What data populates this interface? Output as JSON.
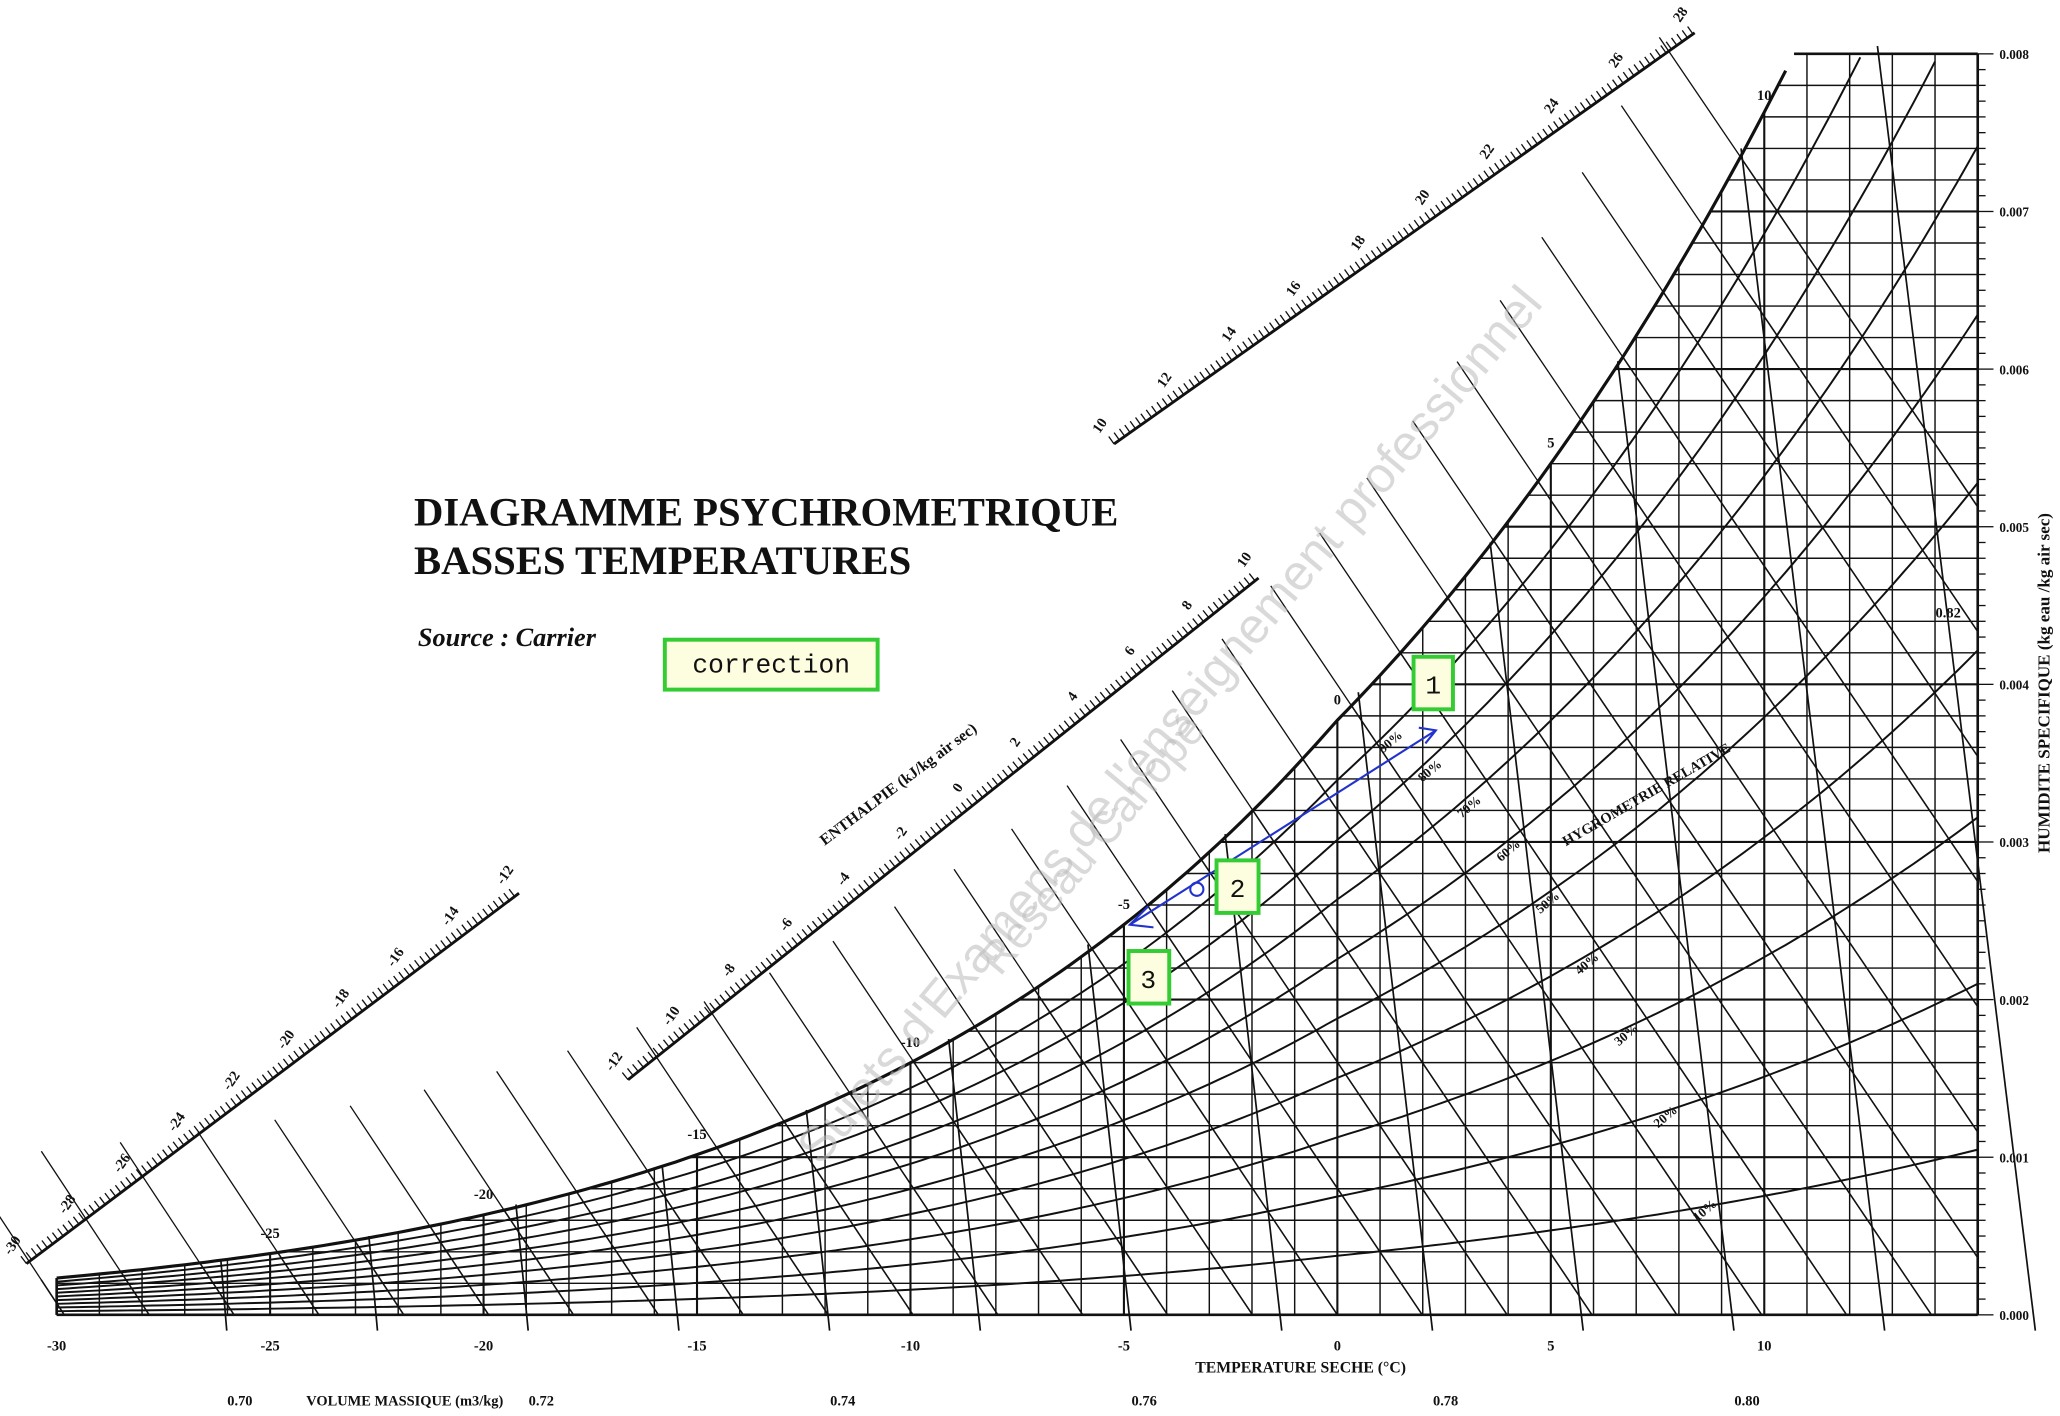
{
  "header": {
    "title_line1": "DIAGRAMME PSYCHROMETRIQUE",
    "title_line2": "BASSES TEMPERATURES",
    "source": "Source : Carrier"
  },
  "annotations": {
    "correction": "correction",
    "points": [
      "1",
      "2",
      "3"
    ]
  },
  "axes": {
    "temperature": {
      "title": "TEMPERATURE SECHE (°C)",
      "ticks": [
        "-30",
        "-25",
        "-20",
        "-15",
        "-10",
        "-5",
        "0",
        "5",
        "10"
      ]
    },
    "humidity": {
      "title": "HUMIDITE SPECIFIQUE (kg eau /kg air sec)",
      "ticks": [
        "0.000",
        "0.001",
        "0.002",
        "0.003",
        "0.004",
        "0.005",
        "0.006",
        "0.007",
        "0.008"
      ]
    },
    "volume": {
      "title": "VOLUME MASSIQUE (m3/kg)",
      "ticks": [
        "0.70",
        "0.72",
        "0.74",
        "0.76",
        "0.78",
        "0.80"
      ],
      "inner_label": "0.82"
    },
    "enthalpy": {
      "title": "ENTHALPIE (kJ/kg air sec)",
      "scale_low": [
        "-30",
        "-28",
        "-26",
        "-24",
        "-22",
        "-20",
        "-18",
        "-16",
        "-14",
        "-12"
      ],
      "scale_mid": [
        "-12",
        "-10",
        "-8",
        "-6",
        "-4",
        "-2",
        "0",
        "2",
        "4",
        "6",
        "8",
        "10"
      ],
      "scale_high": [
        "10",
        "12",
        "14",
        "16",
        "18",
        "20",
        "22",
        "24",
        "26",
        "28"
      ]
    },
    "wet_bulb": {
      "labels": [
        "-25",
        "-20",
        "-15",
        "-10",
        "-5",
        "0",
        "5",
        "10"
      ]
    },
    "relative_humidity": {
      "title": "HYGROMETRIE RELATIVE",
      "labels": [
        "90%",
        "80%",
        "70%",
        "60%",
        "50%",
        "40%",
        "30%",
        "20%",
        "10%"
      ]
    }
  },
  "watermark": [
    "Sujets d'Examens de l'enseignement professionnel",
    "Réseau Canopé"
  ]
}
